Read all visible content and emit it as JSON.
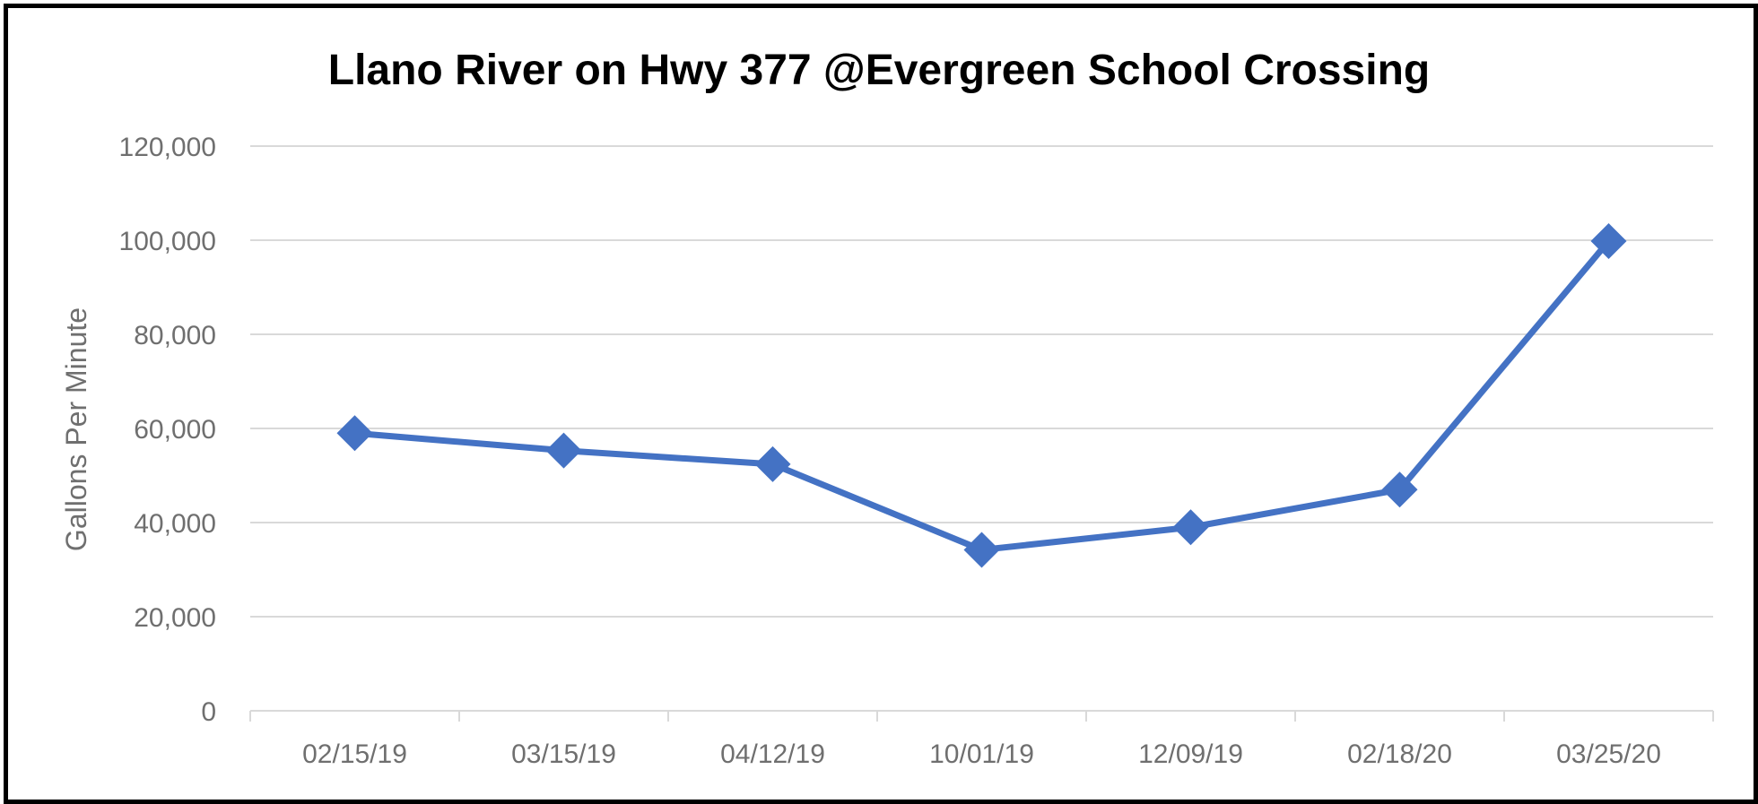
{
  "chart_data": {
    "type": "line",
    "title": "Llano River on Hwy 377 @Evergreen School Crossing",
    "xlabel": "",
    "ylabel": "Gallons Per Minute",
    "categories": [
      "02/15/19",
      "03/15/19",
      "04/12/19",
      "10/01/19",
      "12/09/19",
      "02/18/20",
      "03/25/20"
    ],
    "values": [
      59000,
      55300,
      52400,
      34200,
      39000,
      47000,
      99800
    ],
    "ylim": [
      0,
      120000
    ],
    "yticks": [
      0,
      20000,
      40000,
      60000,
      80000,
      100000,
      120000
    ],
    "ytick_labels": [
      "0",
      "20,000",
      "40,000",
      "60,000",
      "80,000",
      "100,000",
      "120,000"
    ],
    "grid": "horizontal",
    "legend": "none",
    "marker": "diamond",
    "colors": {
      "series": "#4472c4",
      "grid": "#d9d9d9",
      "axis_text": "#6f6f6f",
      "title": "#000000",
      "border": "#000000"
    }
  }
}
